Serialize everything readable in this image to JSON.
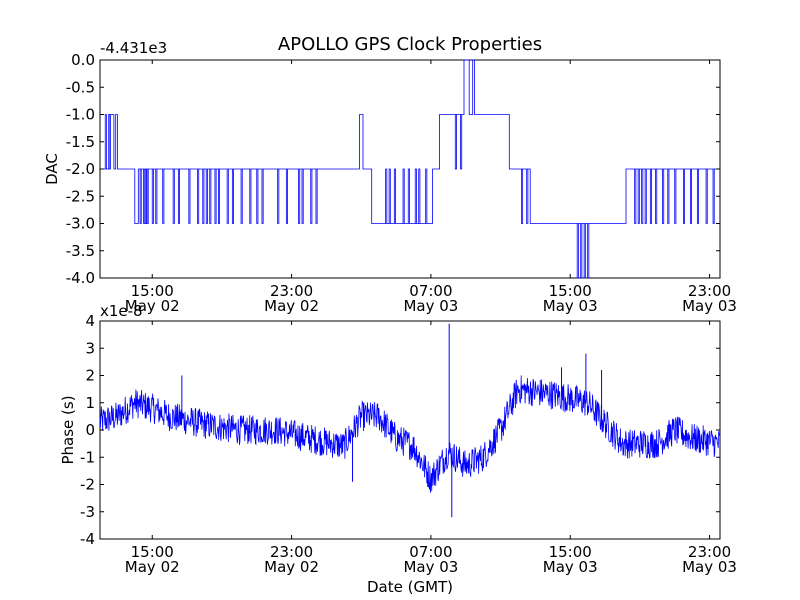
{
  "figure": {
    "title": "APOLLO GPS Clock Properties",
    "xlabel": "Date (GMT)"
  },
  "colors": {
    "line": "#0000ff",
    "axes": "#000000",
    "background": "#ffffff"
  },
  "x_ticks": [
    {
      "hours": 15,
      "label": "15:00",
      "date": "May 02"
    },
    {
      "hours": 23,
      "label": "23:00",
      "date": "May 02"
    },
    {
      "hours": 31,
      "label": "07:00",
      "date": "May 03"
    },
    {
      "hours": 39,
      "label": "15:00",
      "date": "May 03"
    },
    {
      "hours": 47,
      "label": "23:00",
      "date": "May 03"
    }
  ],
  "chart_data": [
    {
      "type": "line",
      "name": "dac",
      "ylabel": "DAC",
      "offset_label": "-4.431e3",
      "xlim_hours": [
        12.0,
        47.6
      ],
      "ylim": [
        -4.0,
        0.0
      ],
      "y_ticks": [
        {
          "value": 0.0,
          "label": "0.0"
        },
        {
          "value": -0.5,
          "label": "-0.5"
        },
        {
          "value": -1.0,
          "label": "-1.0"
        },
        {
          "value": -1.5,
          "label": "-1.5"
        },
        {
          "value": -2.0,
          "label": "-2.0"
        },
        {
          "value": -2.5,
          "label": "-2.5"
        },
        {
          "value": -3.0,
          "label": "-3.0"
        },
        {
          "value": -3.5,
          "label": "-3.5"
        },
        {
          "value": -4.0,
          "label": "-4.0"
        }
      ],
      "segments": [
        {
          "start": 12.0,
          "level": -2,
          "flips": [
            -1,
            -3
          ]
        },
        {
          "start": 12.6,
          "level": -1
        },
        {
          "start": 12.8,
          "level": -2
        },
        {
          "start": 12.9,
          "level": -1
        },
        {
          "start": 13.0,
          "level": -2
        },
        {
          "start": 13.6,
          "level": -2
        },
        {
          "start": 14.0,
          "level": -3
        },
        {
          "start": 14.2,
          "level": -2,
          "flips": [
            -3
          ]
        },
        {
          "start": 15.6,
          "level": -2,
          "flips": [
            -3
          ]
        },
        {
          "start": 17.5,
          "level": -2,
          "flips": [
            -3
          ]
        },
        {
          "start": 23.2,
          "level": -2,
          "flips": [
            -3
          ]
        },
        {
          "start": 26.9,
          "level": -1
        },
        {
          "start": 27.1,
          "level": -2
        },
        {
          "start": 27.6,
          "level": -3
        },
        {
          "start": 28.2,
          "level": -3,
          "flips": [
            -2
          ]
        },
        {
          "start": 31.1,
          "level": -2
        },
        {
          "start": 31.5,
          "level": -1
        },
        {
          "start": 32.3,
          "level": -1,
          "flips": [
            -2
          ]
        },
        {
          "start": 32.9,
          "level": 0
        },
        {
          "start": 33.2,
          "level": -1
        },
        {
          "start": 33.4,
          "level": 0
        },
        {
          "start": 33.5,
          "level": -1
        },
        {
          "start": 34.4,
          "level": -1
        },
        {
          "start": 34.8,
          "level": -1
        },
        {
          "start": 35.5,
          "level": -2
        },
        {
          "start": 36.1,
          "level": -2,
          "flips": [
            -3
          ]
        },
        {
          "start": 36.7,
          "level": -3
        },
        {
          "start": 39.3,
          "level": -3,
          "flips": [
            -4
          ]
        },
        {
          "start": 40.2,
          "level": -3
        },
        {
          "start": 42.2,
          "level": -2
        },
        {
          "start": 42.6,
          "level": -2,
          "flips": [
            -3
          ]
        },
        {
          "start": 47.6,
          "level": -2
        }
      ],
      "flip_points": [
        12.3,
        12.5,
        14.3,
        14.5,
        14.6,
        14.7,
        15.0,
        15.2,
        15.6,
        16.2,
        16.5,
        17.1,
        17.6,
        17.9,
        18.1,
        18.3,
        18.6,
        18.8,
        19.3,
        19.6,
        20.1,
        20.6,
        21.0,
        21.3,
        22.2,
        22.7,
        23.4,
        23.6,
        24.1,
        24.4,
        28.4,
        28.6,
        28.9,
        29.4,
        29.7,
        30.1,
        30.3,
        30.7,
        32.4,
        32.7,
        36.2,
        36.5,
        39.4,
        39.6,
        39.8,
        40.0,
        42.7,
        42.9,
        43.1,
        43.3,
        43.6,
        43.9,
        44.3,
        44.6,
        45.0,
        45.5,
        45.9,
        46.3,
        46.8,
        47.2
      ]
    },
    {
      "type": "line",
      "name": "phase",
      "ylabel": "Phase (s)",
      "offset_label": "x1e-8",
      "xlim_hours": [
        12.0,
        47.6
      ],
      "ylim": [
        -4,
        4
      ],
      "y_ticks": [
        {
          "value": 4,
          "label": "4"
        },
        {
          "value": 3,
          "label": "3"
        },
        {
          "value": 2,
          "label": "2"
        },
        {
          "value": 1,
          "label": "1"
        },
        {
          "value": 0,
          "label": "0"
        },
        {
          "value": -1,
          "label": "-1"
        },
        {
          "value": -2,
          "label": "-2"
        },
        {
          "value": -3,
          "label": "-3"
        },
        {
          "value": -4,
          "label": "-4"
        }
      ],
      "trend": [
        {
          "t": 12.0,
          "y": 0.3
        },
        {
          "t": 13.0,
          "y": 0.5
        },
        {
          "t": 14.0,
          "y": 1.0
        },
        {
          "t": 15.0,
          "y": 0.8
        },
        {
          "t": 16.0,
          "y": 0.5
        },
        {
          "t": 18.0,
          "y": 0.2
        },
        {
          "t": 20.0,
          "y": 0.0
        },
        {
          "t": 22.0,
          "y": 0.0
        },
        {
          "t": 24.0,
          "y": -0.3
        },
        {
          "t": 26.0,
          "y": -0.6
        },
        {
          "t": 27.0,
          "y": 0.5
        },
        {
          "t": 28.0,
          "y": 0.5
        },
        {
          "t": 29.0,
          "y": -0.3
        },
        {
          "t": 30.0,
          "y": -0.6
        },
        {
          "t": 31.0,
          "y": -1.8
        },
        {
          "t": 32.0,
          "y": -0.8
        },
        {
          "t": 33.0,
          "y": -1.3
        },
        {
          "t": 34.0,
          "y": -1.0
        },
        {
          "t": 35.0,
          "y": 0.0
        },
        {
          "t": 36.0,
          "y": 1.5
        },
        {
          "t": 38.0,
          "y": 1.3
        },
        {
          "t": 40.0,
          "y": 1.0
        },
        {
          "t": 42.0,
          "y": -0.5
        },
        {
          "t": 44.0,
          "y": -0.5
        },
        {
          "t": 45.0,
          "y": 0.0
        },
        {
          "t": 46.0,
          "y": -0.3
        },
        {
          "t": 47.6,
          "y": -0.5
        }
      ],
      "noise_amplitude": 0.55,
      "spikes": [
        {
          "t": 32.05,
          "y": 3.9
        },
        {
          "t": 32.2,
          "y": -3.2
        },
        {
          "t": 39.9,
          "y": 2.8
        },
        {
          "t": 40.8,
          "y": 2.2
        },
        {
          "t": 26.5,
          "y": -1.9
        },
        {
          "t": 16.7,
          "y": 2.0
        },
        {
          "t": 38.5,
          "y": 2.3
        }
      ]
    }
  ]
}
